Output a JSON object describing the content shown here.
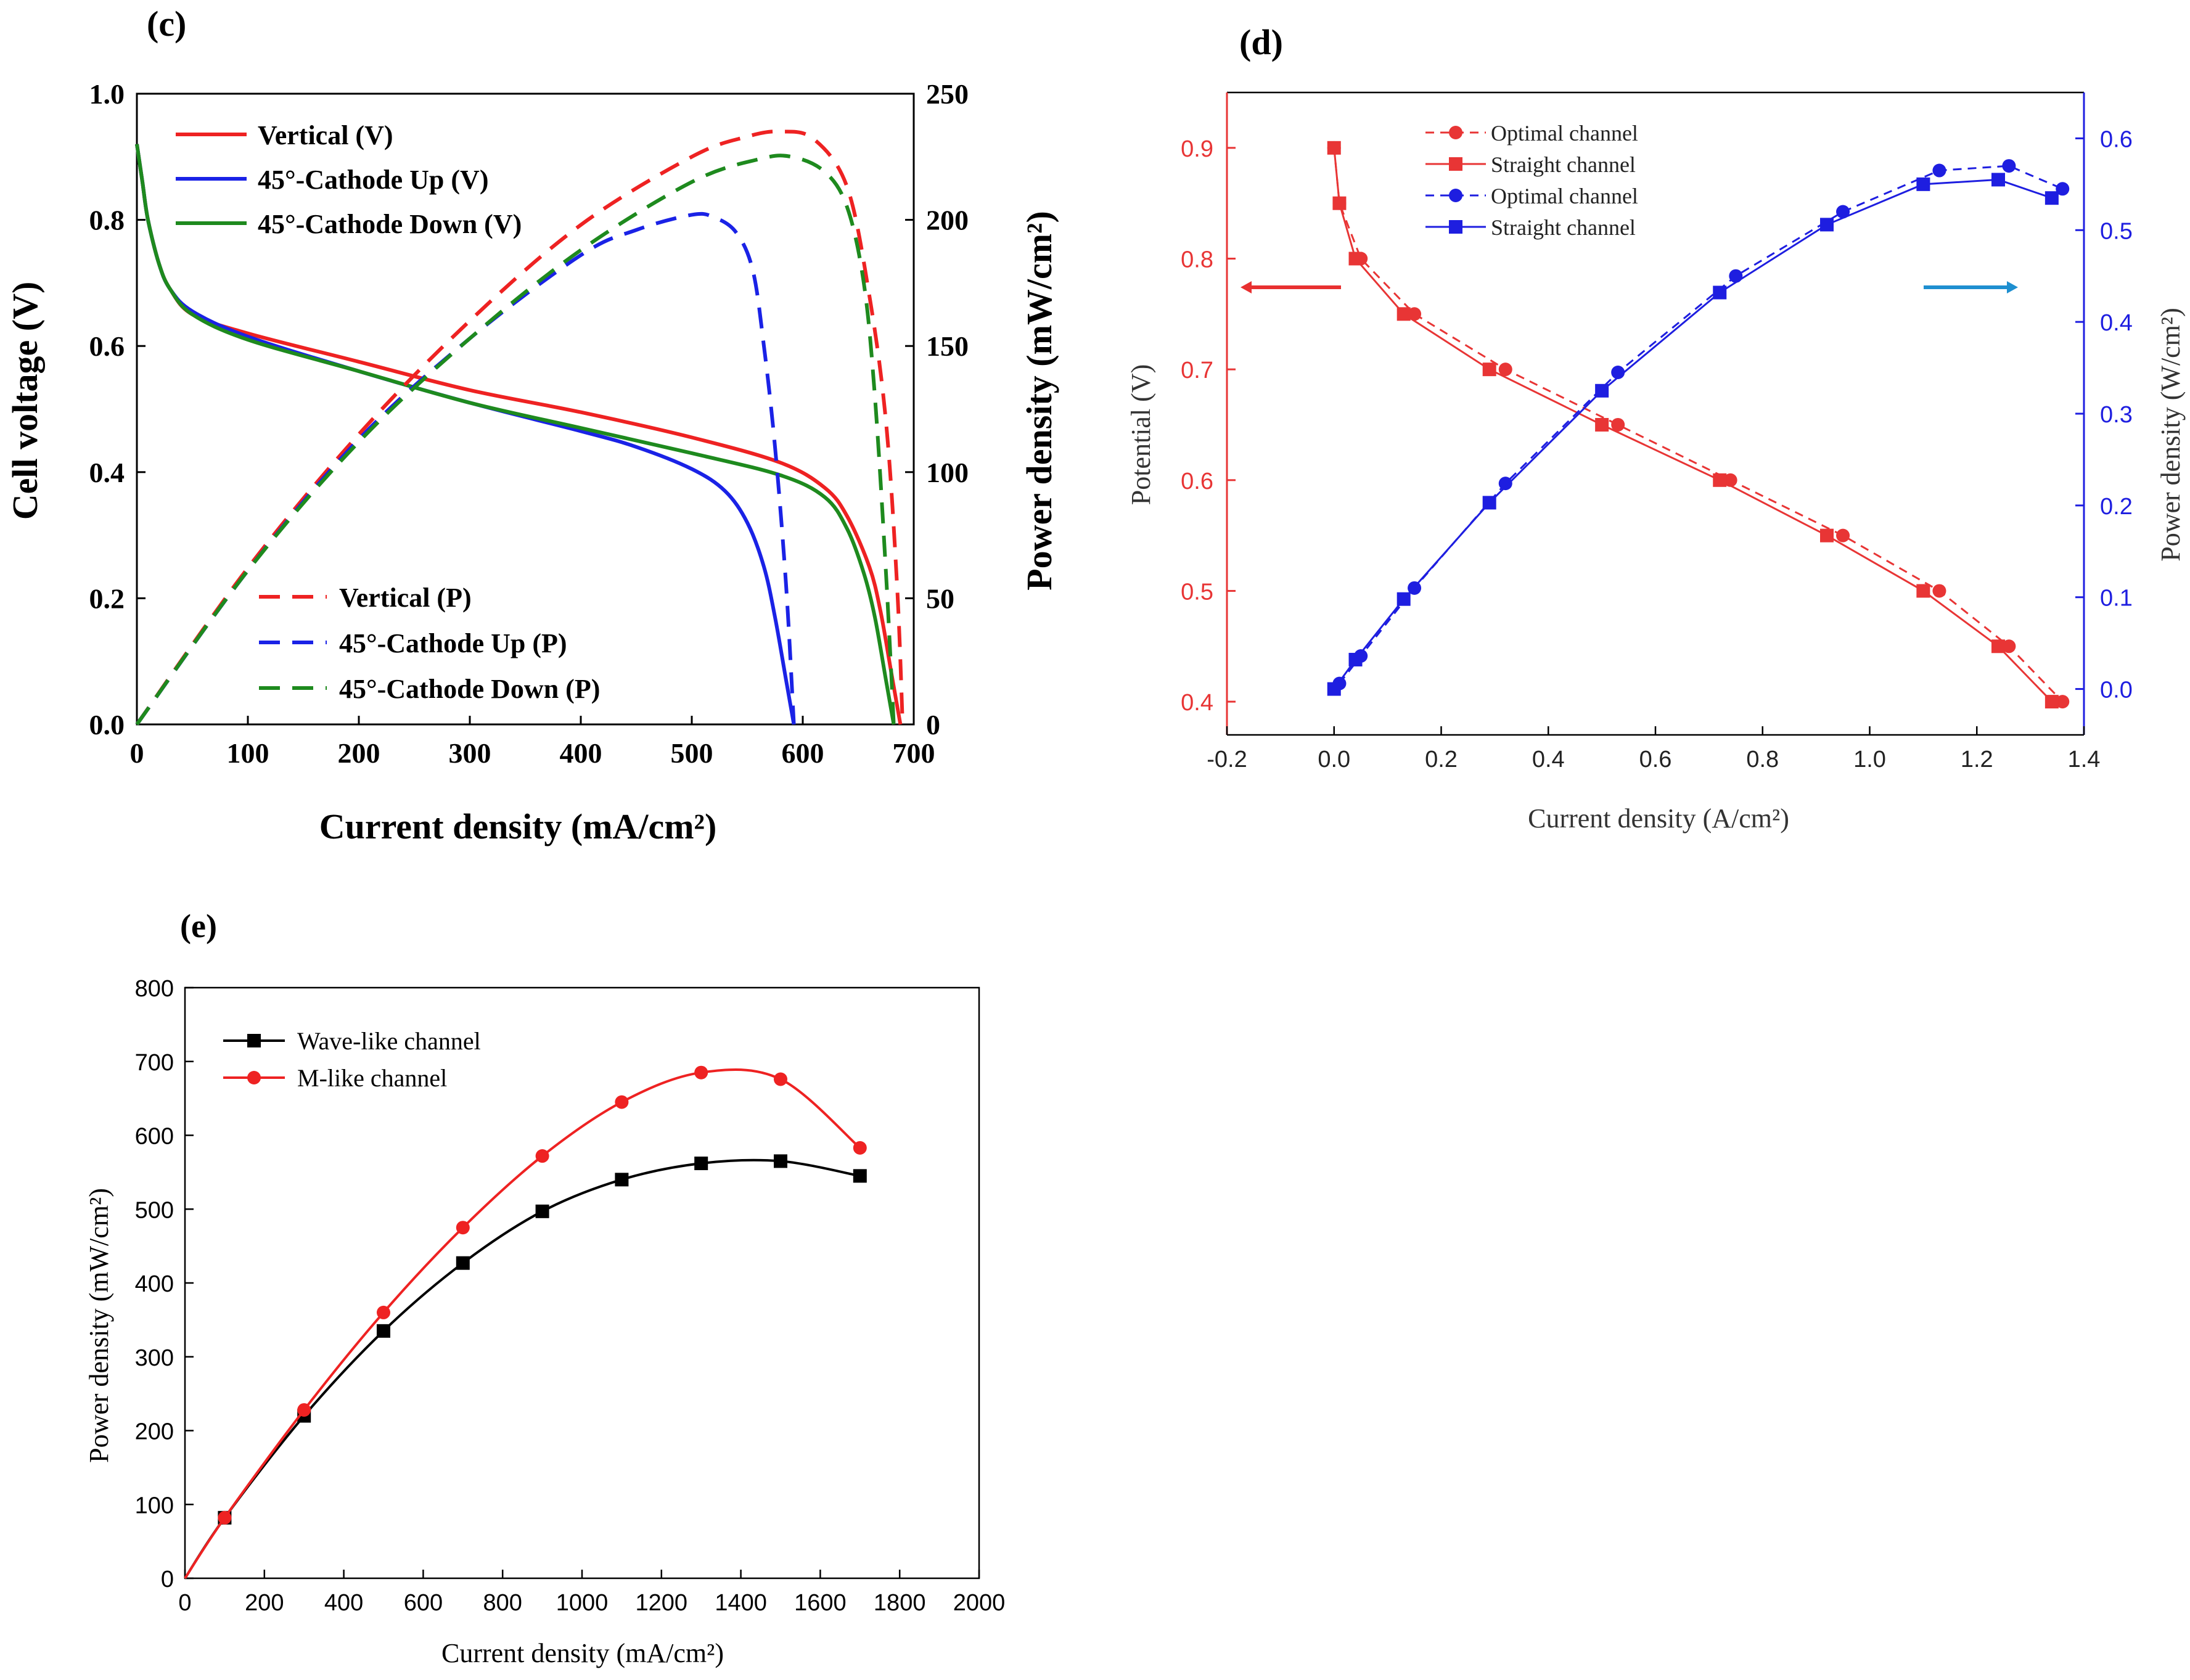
{
  "figure": {
    "panel_labels": [
      "(c)",
      "(d)",
      "(e)"
    ]
  },
  "colors": {
    "red": "#ee2222",
    "blue": "#1a22e6",
    "green": "#1e8a1e",
    "black": "#000000",
    "arrow_red": "#e83030",
    "arrow_blue": "#1e8fd0",
    "panel_d_red": "#e83535",
    "panel_d_blue": "#1e1ee0"
  },
  "chart_data": [
    {
      "panel": "(c)",
      "type": "line",
      "title": "",
      "xlabel": "Current density (mA/cm²)",
      "ylabel_left": "Cell voltage (V)",
      "ylabel_right": "Power density (mW/cm²)",
      "xlim": [
        0,
        700
      ],
      "ylim_left": [
        0,
        1.0
      ],
      "ylim_right": [
        0,
        250
      ],
      "xticks": [
        "0",
        "100",
        "200",
        "300",
        "400",
        "500",
        "600",
        "700"
      ],
      "yticks_left": [
        "0.0",
        "0.2",
        "0.4",
        "0.6",
        "0.8",
        "1.0"
      ],
      "yticks_right": [
        "0",
        "50",
        "100",
        "150",
        "200",
        "250"
      ],
      "legend_voltage": [
        "Vertical (V)",
        "45°-Cathode Up (V)",
        "45°-Cathode Down (V)"
      ],
      "legend_power": [
        "Vertical (P)",
        "45°-Cathode Up (P)",
        "45°-Cathode Down (P)"
      ],
      "series": [
        {
          "name": "Vertical (V)",
          "axis": "left",
          "color": "red",
          "dash": false,
          "x": [
            0,
            5,
            10,
            20,
            30,
            50,
            100,
            200,
            300,
            400,
            500,
            580,
            620,
            640,
            660,
            670,
            680,
            688
          ],
          "y": [
            0.92,
            0.86,
            0.8,
            0.73,
            0.69,
            0.65,
            0.62,
            0.575,
            0.53,
            0.495,
            0.455,
            0.415,
            0.375,
            0.33,
            0.25,
            0.18,
            0.08,
            0.0
          ]
        },
        {
          "name": "45°-Cathode Up (V)",
          "axis": "left",
          "color": "blue",
          "dash": false,
          "x": [
            0,
            5,
            10,
            20,
            30,
            50,
            100,
            200,
            300,
            400,
            450,
            500,
            530,
            550,
            565,
            575,
            585,
            592
          ],
          "y": [
            0.92,
            0.86,
            0.8,
            0.73,
            0.69,
            0.655,
            0.615,
            0.56,
            0.51,
            0.465,
            0.44,
            0.405,
            0.37,
            0.32,
            0.25,
            0.17,
            0.07,
            0.0
          ]
        },
        {
          "name": "45°-Cathode Down (V)",
          "axis": "left",
          "color": "green",
          "dash": false,
          "x": [
            0,
            5,
            10,
            20,
            30,
            50,
            100,
            200,
            300,
            400,
            500,
            580,
            620,
            640,
            655,
            665,
            675,
            682
          ],
          "y": [
            0.92,
            0.86,
            0.8,
            0.73,
            0.69,
            0.65,
            0.61,
            0.56,
            0.51,
            0.47,
            0.43,
            0.395,
            0.36,
            0.31,
            0.24,
            0.17,
            0.07,
            0.0
          ]
        },
        {
          "name": "Vertical (P)",
          "axis": "right",
          "color": "red",
          "dash": true,
          "x": [
            0,
            100,
            200,
            300,
            400,
            500,
            550,
            580,
            610,
            640,
            660,
            675,
            685,
            690
          ],
          "y": [
            0,
            62,
            115,
            160,
            198,
            225,
            233,
            235,
            232,
            213,
            170,
            120,
            55,
            0
          ]
        },
        {
          "name": "45°-Cathode Up (P)",
          "axis": "right",
          "color": "blue",
          "dash": true,
          "x": [
            0,
            100,
            200,
            300,
            400,
            450,
            500,
            520,
            540,
            555,
            565,
            575,
            585,
            592
          ],
          "y": [
            0,
            61,
            113,
            153,
            186,
            196,
            202,
            201,
            195,
            180,
            150,
            110,
            55,
            0
          ]
        },
        {
          "name": "45°-Cathode Down (P)",
          "axis": "right",
          "color": "green",
          "dash": true,
          "x": [
            0,
            100,
            200,
            300,
            400,
            500,
            560,
            590,
            620,
            640,
            655,
            665,
            675,
            682
          ],
          "y": [
            0,
            61,
            112,
            153,
            188,
            215,
            224,
            225,
            219,
            205,
            175,
            130,
            60,
            0
          ]
        }
      ]
    },
    {
      "panel": "(d)",
      "type": "line",
      "title": "",
      "xlabel": "Current density (A/cm²)",
      "ylabel_left": "Potential (V)",
      "ylabel_right": "Power density (W/cm²)",
      "xlim": [
        -0.2,
        1.4
      ],
      "ylim_left": [
        0.37,
        0.95
      ],
      "ylim_right": [
        -0.05,
        0.65
      ],
      "xticks": [
        "-0.2",
        "0.0",
        "0.2",
        "0.4",
        "0.6",
        "0.8",
        "1.0",
        "1.2",
        "1.4"
      ],
      "yticks_left": [
        "0.4",
        "0.5",
        "0.6",
        "0.7",
        "0.8",
        "0.9"
      ],
      "yticks_right": [
        "0.0",
        "0.1",
        "0.2",
        "0.3",
        "0.4",
        "0.5",
        "0.6"
      ],
      "legend": [
        "Optimal channel",
        "Straight channel",
        "Optimal channel",
        "Straight channel"
      ],
      "series": [
        {
          "name": "Optimal channel",
          "axis": "left",
          "color": "panel_d_red",
          "dash": true,
          "marker": "circle",
          "x": [
            0.0,
            0.01,
            0.05,
            0.15,
            0.32,
            0.53,
            0.74,
            0.95,
            1.13,
            1.26,
            1.36
          ],
          "y": [
            0.9,
            0.85,
            0.8,
            0.75,
            0.7,
            0.65,
            0.6,
            0.55,
            0.5,
            0.45,
            0.4
          ]
        },
        {
          "name": "Straight channel",
          "axis": "left",
          "color": "panel_d_red",
          "dash": false,
          "marker": "square",
          "x": [
            0.0,
            0.01,
            0.04,
            0.13,
            0.29,
            0.5,
            0.72,
            0.92,
            1.1,
            1.24,
            1.34
          ],
          "y": [
            0.9,
            0.85,
            0.8,
            0.75,
            0.7,
            0.65,
            0.6,
            0.55,
            0.5,
            0.45,
            0.4
          ]
        },
        {
          "name": "Optimal channel",
          "axis": "right",
          "color": "panel_d_blue",
          "dash": true,
          "marker": "circle",
          "x": [
            0.01,
            0.05,
            0.15,
            0.32,
            0.53,
            0.75,
            0.95,
            1.13,
            1.26,
            1.36
          ],
          "y": [
            0.006,
            0.036,
            0.11,
            0.224,
            0.345,
            0.45,
            0.52,
            0.565,
            0.57,
            0.545
          ]
        },
        {
          "name": "Straight channel",
          "axis": "right",
          "color": "panel_d_blue",
          "dash": false,
          "marker": "square",
          "x": [
            0.0,
            0.04,
            0.13,
            0.29,
            0.5,
            0.72,
            0.92,
            1.1,
            1.24,
            1.34
          ],
          "y": [
            0.0,
            0.032,
            0.098,
            0.203,
            0.325,
            0.432,
            0.506,
            0.55,
            0.555,
            0.535
          ]
        }
      ]
    },
    {
      "panel": "(e)",
      "type": "line",
      "title": "",
      "xlabel": "Current density (mA/cm²)",
      "ylabel": "Power density (mW/cm²)",
      "xlim": [
        0,
        2000
      ],
      "ylim": [
        0,
        800
      ],
      "xticks": [
        "0",
        "200",
        "400",
        "600",
        "800",
        "1000",
        "1200",
        "1400",
        "1600",
        "1800",
        "2000"
      ],
      "yticks": [
        "0",
        "100",
        "200",
        "300",
        "400",
        "500",
        "600",
        "700",
        "800"
      ],
      "legend": [
        "Wave-like channel",
        "M-like channel"
      ],
      "series": [
        {
          "name": "Wave-like channel",
          "color": "black",
          "marker": "square",
          "x": [
            0,
            100,
            300,
            500,
            700,
            900,
            1100,
            1300,
            1500,
            1700
          ],
          "y": [
            0,
            82,
            220,
            335,
            427,
            497,
            540,
            562,
            565,
            545
          ]
        },
        {
          "name": "M-like channel",
          "color": "red",
          "marker": "circle",
          "x": [
            0,
            100,
            300,
            500,
            700,
            900,
            1100,
            1300,
            1500,
            1700
          ],
          "y": [
            0,
            82,
            228,
            360,
            475,
            572,
            645,
            685,
            676,
            583
          ]
        }
      ]
    }
  ]
}
